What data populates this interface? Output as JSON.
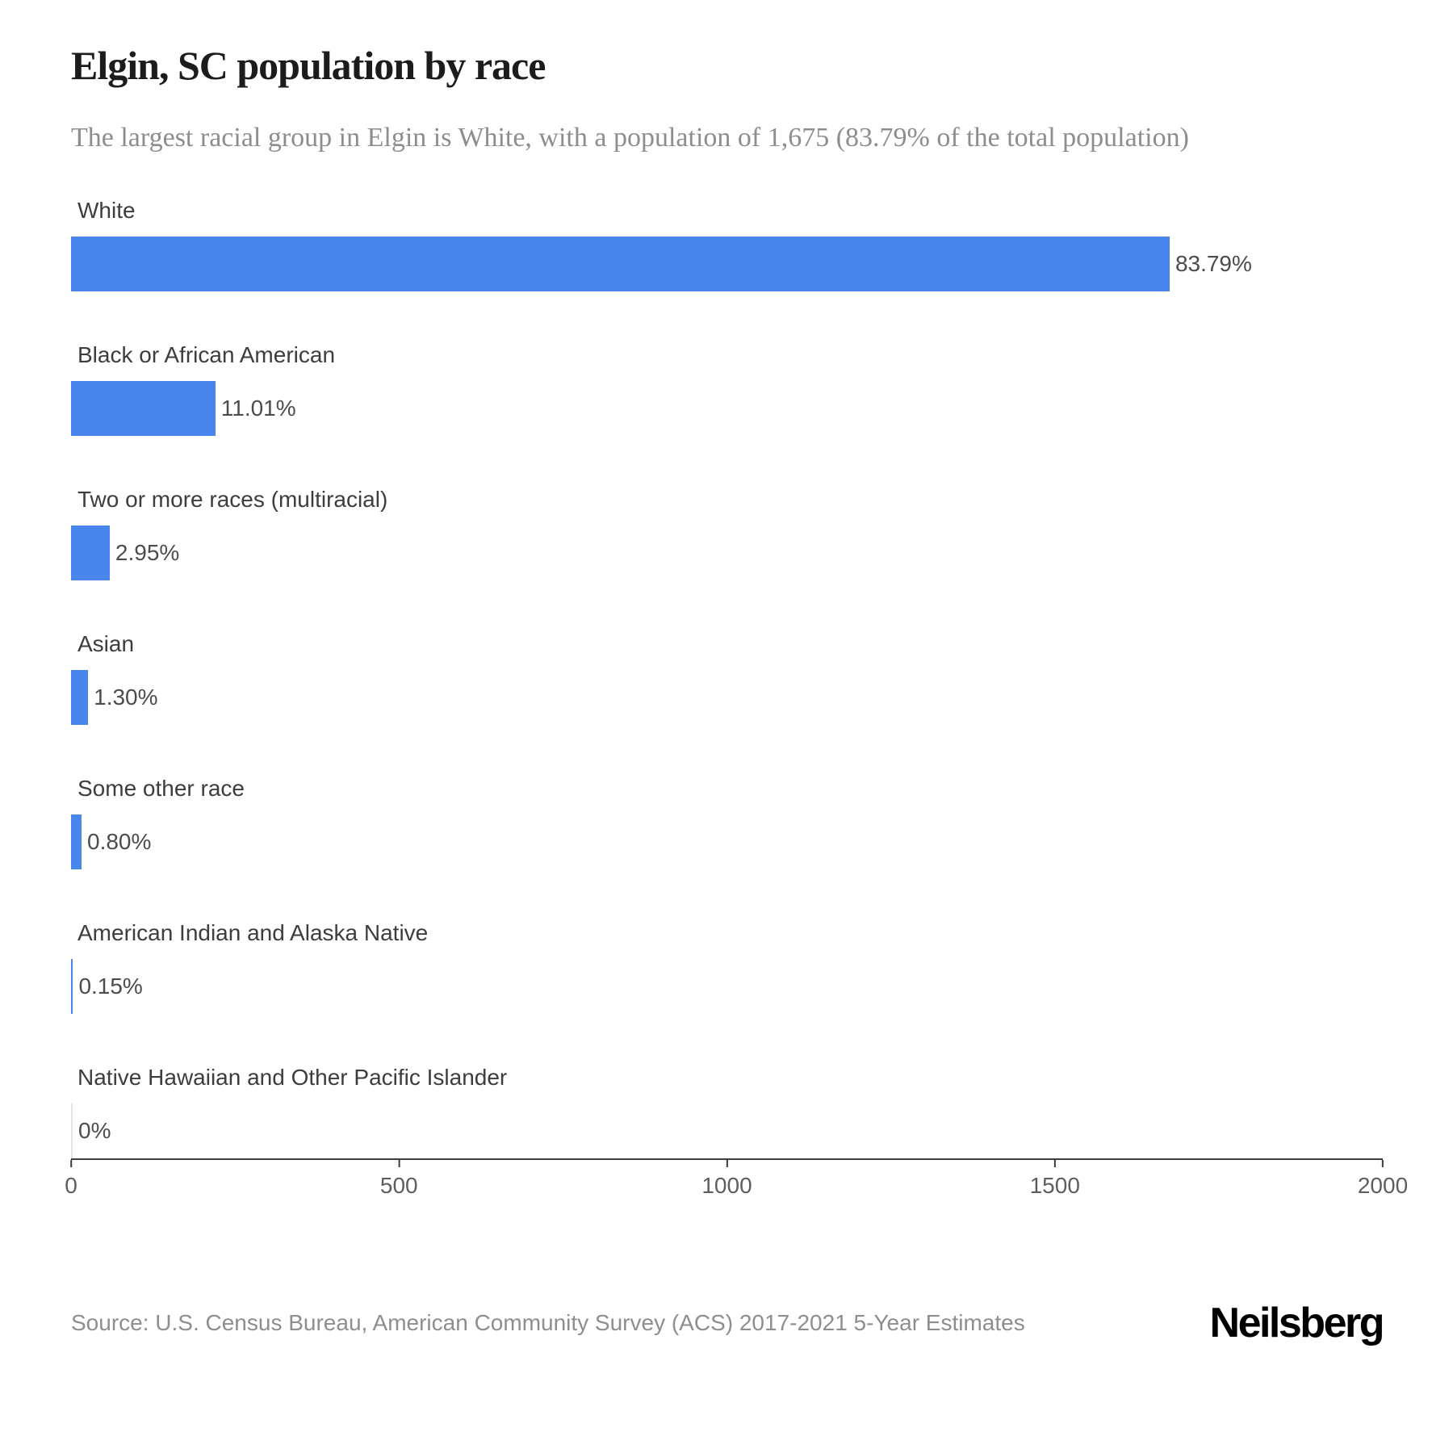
{
  "header": {
    "title": "Elgin, SC population by race",
    "subtitle": "The largest racial group in Elgin is White, with a population of 1,675 (83.79% of the total population)"
  },
  "chart_data": {
    "type": "bar",
    "orientation": "horizontal",
    "title": "Elgin, SC population by race",
    "xlabel": "",
    "ylabel": "",
    "xlim": [
      0,
      2000
    ],
    "x_ticks": [
      0,
      500,
      1000,
      1500,
      2000
    ],
    "grid": false,
    "legend": false,
    "bar_color": "#4885ED",
    "zero_bar_color": "#e2e2e2",
    "categories": [
      "White",
      "Black or African American",
      "Two or more races (multiracial)",
      "Asian",
      "Some other race",
      "American Indian and Alaska Native",
      "Native Hawaiian and Other Pacific Islander"
    ],
    "values": [
      1675,
      220,
      59,
      26,
      16,
      3,
      0
    ],
    "percent_labels": [
      "83.79%",
      "11.01%",
      "2.95%",
      "1.30%",
      "0.80%",
      "0.15%",
      "0%"
    ]
  },
  "footer": {
    "source": "Source: U.S. Census Bureau, American Community Survey (ACS) 2017-2021 5-Year Estimates",
    "logo": "Neilsberg"
  }
}
